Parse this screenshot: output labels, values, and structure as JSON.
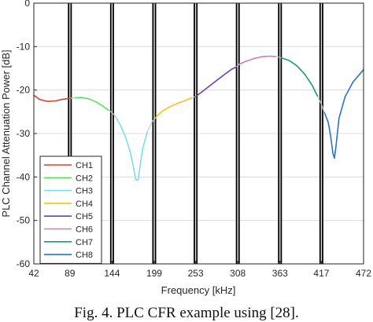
{
  "chart_data": {
    "type": "line",
    "xlabel": "Frequency [kHz]",
    "ylabel": "PLC Channel Attenuation Power [dB]",
    "xlim": [
      42,
      472
    ],
    "ylim": [
      -60,
      0
    ],
    "xticks": [
      "42",
      "89",
      "144",
      "199",
      "253",
      "308",
      "363",
      "417",
      "472"
    ],
    "xtick_values": [
      42,
      89,
      144,
      199,
      253,
      308,
      363,
      417,
      472
    ],
    "yticks": [
      "0",
      "-10",
      "-20",
      "-30",
      "-40",
      "-50",
      "-60"
    ],
    "ytick_values": [
      0,
      -10,
      -20,
      -30,
      -40,
      -50,
      -60
    ],
    "grid": true,
    "legend_position": "bottom-left",
    "band_edges": [
      89,
      144,
      199,
      253,
      308,
      363,
      417
    ],
    "gap_color": "#c8c8c8",
    "series": [
      {
        "name": "CH1",
        "color": "#d9452e",
        "x": [
          42,
          50,
          60,
          70,
          80,
          89
        ],
        "y": [
          -21.2,
          -22.2,
          -22.6,
          -22.5,
          -22.1,
          -21.9
        ]
      },
      {
        "name": "CH2",
        "color": "#5be05b",
        "x": [
          96,
          105,
          115,
          125,
          133,
          139
        ],
        "y": [
          -21.8,
          -21.7,
          -22.1,
          -22.9,
          -23.8,
          -24.6
        ]
      },
      {
        "name": "CH3",
        "color": "#7fdde8",
        "x": [
          148,
          155,
          162,
          168,
          172,
          175,
          178,
          181,
          184,
          190
        ],
        "y": [
          -26.0,
          -28.1,
          -31.0,
          -34.5,
          -37.8,
          -40.6,
          -40.7,
          -37.0,
          -33.4,
          -29.6
        ]
      },
      {
        "name": "CH4",
        "color": "#f0c419",
        "x": [
          202,
          210,
          220,
          230,
          240,
          248
        ],
        "y": [
          -26.1,
          -24.8,
          -23.8,
          -23.0,
          -22.4,
          -21.8
        ]
      },
      {
        "name": "CH5",
        "color": "#6a3fb2",
        "x": [
          253,
          265,
          278,
          290,
          300,
          306
        ],
        "y": [
          -21.5,
          -19.9,
          -18.1,
          -16.5,
          -15.2,
          -14.7
        ]
      },
      {
        "name": "CH6",
        "color": "#cc7ab8",
        "x": [
          310,
          320,
          330,
          340,
          350,
          357
        ],
        "y": [
          -14.0,
          -13.3,
          -12.7,
          -12.3,
          -12.2,
          -12.3
        ]
      },
      {
        "name": "CH7",
        "color": "#1c9a78",
        "x": [
          365,
          375,
          385,
          395,
          405,
          412
        ],
        "y": [
          -12.6,
          -13.2,
          -14.4,
          -16.3,
          -18.9,
          -21.4
        ]
      },
      {
        "name": "CH8",
        "color": "#2c73c4",
        "x": [
          421,
          426,
          429,
          432,
          434,
          436,
          440,
          448,
          458,
          472
        ],
        "y": [
          -25.2,
          -27.5,
          -30.5,
          -34.5,
          -35.7,
          -33.0,
          -26.5,
          -21.5,
          -18.2,
          -15.3
        ]
      }
    ],
    "gaps": [
      {
        "x": [
          89,
          92,
          96
        ],
        "y": [
          -21.9,
          -21.8,
          -21.8
        ]
      },
      {
        "x": [
          139,
          144,
          148
        ],
        "y": [
          -24.6,
          -25.2,
          -26.0
        ]
      },
      {
        "x": [
          190,
          196,
          202
        ],
        "y": [
          -29.6,
          -27.4,
          -26.1
        ]
      },
      {
        "x": [
          248,
          251,
          253
        ],
        "y": [
          -21.8,
          -21.6,
          -21.5
        ]
      },
      {
        "x": [
          306,
          308,
          310
        ],
        "y": [
          -14.7,
          -14.4,
          -14.0
        ]
      },
      {
        "x": [
          357,
          361,
          365
        ],
        "y": [
          -12.3,
          -12.4,
          -12.6
        ]
      },
      {
        "x": [
          412,
          417,
          421
        ],
        "y": [
          -21.4,
          -23.3,
          -25.2
        ]
      }
    ]
  },
  "caption": "Fig. 4. PLC CFR example using [28]."
}
